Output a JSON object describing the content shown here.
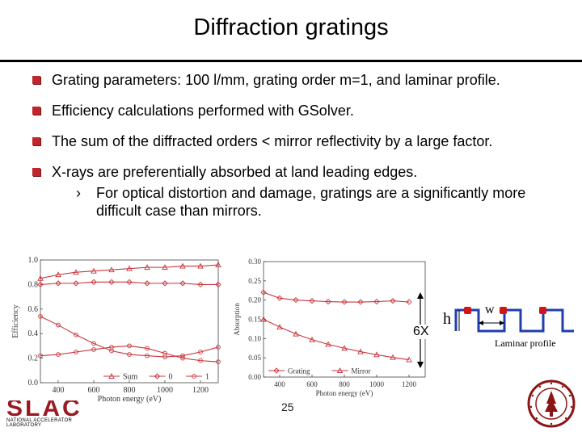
{
  "title": "Diffraction gratings",
  "bullets": [
    "Grating parameters: 100 l/mm, grating order m=1, and laminar profile.",
    "Efficiency calculations performed with GSolver.",
    "The sum of the diffracted orders < mirror reflectivity by a large factor.",
    "X-rays are preferentially absorbed at land leading edges."
  ],
  "sub_bullet": {
    "marker": "›",
    "text": "For optical distortion and damage, gratings are a significantly more difficult case than mirrors."
  },
  "accent_color": "#c0272d",
  "chart_data": [
    {
      "type": "line",
      "xlabel": "Photon energy (eV)",
      "ylabel": "Efficiency",
      "xlim": [
        300,
        1300
      ],
      "ylim": [
        0.0,
        1.0
      ],
      "xticks": [
        "400",
        "600",
        "800",
        "1000",
        "1200"
      ],
      "yticks": [
        "0.0",
        "0.2",
        "0.4",
        "0.6",
        "0.8",
        "1.0"
      ],
      "x": [
        300,
        400,
        500,
        600,
        700,
        800,
        900,
        1000,
        1100,
        1200,
        1300
      ],
      "series": [
        {
          "name": "Sum",
          "marker": "triangle",
          "values": [
            0.85,
            0.88,
            0.9,
            0.91,
            0.92,
            0.93,
            0.94,
            0.94,
            0.95,
            0.95,
            0.96
          ]
        },
        {
          "name": "0",
          "marker": "diamond",
          "values": [
            0.8,
            0.81,
            0.81,
            0.82,
            0.82,
            0.82,
            0.81,
            0.81,
            0.81,
            0.8,
            0.8
          ]
        },
        {
          "name": "1",
          "marker": "circle",
          "values": [
            0.54,
            0.47,
            0.39,
            0.32,
            0.26,
            0.23,
            0.22,
            0.21,
            0.22,
            0.25,
            0.29
          ]
        },
        {
          "name": "",
          "marker": "circle",
          "values": [
            0.22,
            0.23,
            0.25,
            0.27,
            0.29,
            0.3,
            0.28,
            0.24,
            0.2,
            0.18,
            0.17
          ]
        }
      ],
      "legend_position": "bottom"
    },
    {
      "type": "line",
      "xlabel": "Photon energy (eV)",
      "ylabel": "Absorption",
      "xlim": [
        300,
        1300
      ],
      "ylim": [
        0.0,
        0.3
      ],
      "xticks": [
        "400",
        "600",
        "800",
        "1000",
        "1200"
      ],
      "yticks": [
        "0.00",
        "0.05",
        "0.10",
        "0.15",
        "0.20",
        "0.25",
        "0.30"
      ],
      "x": [
        300,
        400,
        500,
        600,
        700,
        800,
        900,
        1000,
        1100,
        1200
      ],
      "series": [
        {
          "name": "Grating",
          "marker": "diamond",
          "values": [
            0.22,
            0.205,
            0.2,
            0.198,
            0.196,
            0.195,
            0.195,
            0.196,
            0.198,
            0.195
          ]
        },
        {
          "name": "Mirror",
          "marker": "triangle",
          "values": [
            0.15,
            0.13,
            0.112,
            0.097,
            0.085,
            0.075,
            0.066,
            0.058,
            0.051,
            0.045
          ]
        }
      ],
      "legend_position": "bottom"
    }
  ],
  "annotation_6x": "6X",
  "profile": {
    "h_label": "h",
    "w_label": "w",
    "caption": "Laminar profile"
  },
  "footer": {
    "page_number": "25",
    "logo_text": "SLAC",
    "logo_subtext": "NATIONAL ACCELERATOR LABORATORY",
    "seal_text": "STANFORD UNIVERSITY"
  }
}
